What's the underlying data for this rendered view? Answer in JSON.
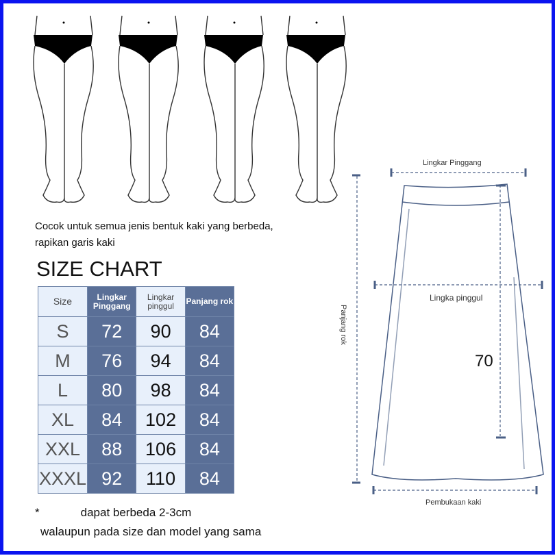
{
  "description": [
    "Cocok untuk semua jenis bentuk kaki yang berbeda,",
    "rapikan garis kaki"
  ],
  "title": "SIZE CHART",
  "table": {
    "headers": [
      "Size",
      "Lingkar Pinggang",
      "Lingkar pinggul",
      "Panjang rok"
    ],
    "rows": [
      [
        "S",
        "72",
        "90",
        "84"
      ],
      [
        "M",
        "76",
        "94",
        "84"
      ],
      [
        "L",
        "80",
        "98",
        "84"
      ],
      [
        "XL",
        "84",
        "102",
        "84"
      ],
      [
        "XXL",
        "88",
        "106",
        "84"
      ],
      [
        "XXXL",
        "92",
        "110",
        "84"
      ]
    ]
  },
  "notes": {
    "asterisk": "*",
    "line1": "dapat berbeda 2-3cm",
    "line2": "walaupun pada size dan model yang sama"
  },
  "diagram": {
    "waist": "Lingkar Pinggang",
    "hip": "Lingka pinggul",
    "length": "Panjang rok",
    "inner_length": "70",
    "hem": "Pembukaan kaki"
  },
  "colors": {
    "border": "#0a14f0",
    "dark_column": "#5a6f97",
    "light_column": "#e8f0fb",
    "diagram_line": "#4a5f86"
  }
}
